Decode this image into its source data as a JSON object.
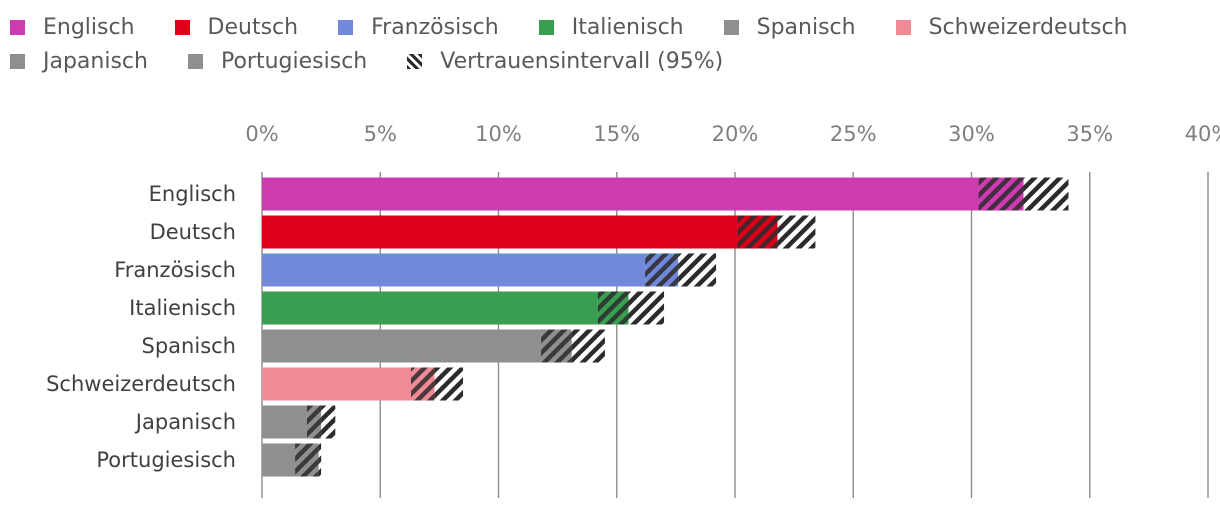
{
  "chart_data": {
    "type": "bar",
    "orientation": "horizontal",
    "title": "",
    "xlabel": "",
    "ylabel": "",
    "xlim": [
      0,
      40
    ],
    "ticks": [
      0,
      5,
      10,
      15,
      20,
      25,
      30,
      35,
      40
    ],
    "tick_suffix": "%",
    "grid": true,
    "legend_position": "top",
    "categories": [
      "Englisch",
      "Deutsch",
      "Französisch",
      "Italienisch",
      "Spanisch",
      "Schweizerdeutsch",
      "Japanisch",
      "Portugiesisch"
    ],
    "values": [
      32.2,
      21.8,
      17.6,
      15.5,
      13.1,
      7.3,
      2.5,
      2.4
    ],
    "ci_lower": [
      30.3,
      20.1,
      16.2,
      14.2,
      11.8,
      6.3,
      1.9,
      1.4
    ],
    "ci_upper": [
      34.1,
      23.4,
      19.2,
      17.0,
      14.5,
      8.5,
      3.1,
      2.5
    ],
    "colors": [
      "#cc3bb0",
      "#de001a",
      "#7189d8",
      "#3a9e50",
      "#8f8f8f",
      "#f08a96",
      "#8f8f8f",
      "#8f8f8f"
    ],
    "legend": [
      {
        "label": "Englisch",
        "color": "#cc3bb0"
      },
      {
        "label": "Deutsch",
        "color": "#de001a"
      },
      {
        "label": "Französisch",
        "color": "#7189d8"
      },
      {
        "label": "Italienisch",
        "color": "#3a9e50"
      },
      {
        "label": "Spanisch",
        "color": "#8f8f8f"
      },
      {
        "label": "Schweizerdeutsch",
        "color": "#f08a96"
      },
      {
        "label": "Japanisch",
        "color": "#8f8f8f"
      },
      {
        "label": "Portugiesisch",
        "color": "#8f8f8f"
      },
      {
        "label": "Vertrauensintervall (95%)",
        "color": "hatch"
      }
    ]
  }
}
